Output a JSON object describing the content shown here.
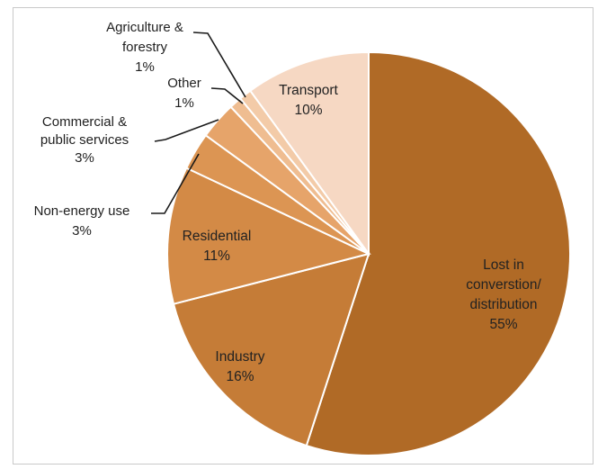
{
  "chart_data": {
    "type": "pie",
    "title": "",
    "legend": "none",
    "slices": [
      {
        "name_lines": [
          "Lost in",
          "converstion/",
          "distribution"
        ],
        "value": 55,
        "label": "55%",
        "color": "#b06a26"
      },
      {
        "name_lines": [
          "Industry"
        ],
        "value": 16,
        "label": "16%",
        "color": "#c57c37"
      },
      {
        "name_lines": [
          "Residential"
        ],
        "value": 11,
        "label": "11%",
        "color": "#d38a46"
      },
      {
        "name_lines": [
          "Non-energy use"
        ],
        "value": 3,
        "label": "3%",
        "color": "#dc9553"
      },
      {
        "name_lines": [
          "Commercial &",
          "public services"
        ],
        "value": 3,
        "label": "3%",
        "color": "#e6a46a"
      },
      {
        "name_lines": [
          "Other"
        ],
        "value": 1,
        "label": "1%",
        "color": "#efbd91"
      },
      {
        "name_lines": [
          "Agriculture &",
          "forestry"
        ],
        "value": 1,
        "label": "1%",
        "color": "#f3cba8"
      },
      {
        "name_lines": [
          "Transport"
        ],
        "value": 10,
        "label": "10%",
        "color": "#f6d8c3"
      }
    ]
  }
}
